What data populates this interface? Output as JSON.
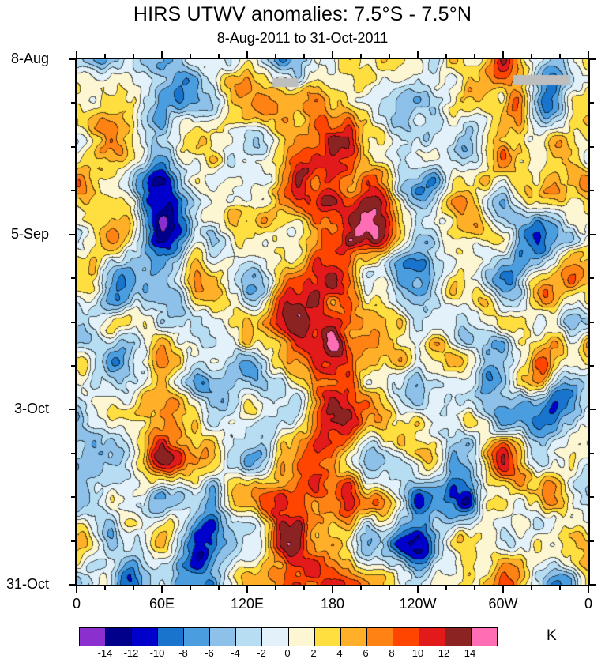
{
  "chart_data": {
    "type": "heatmap",
    "variant": "hovmoller_filled_contour",
    "title": "HIRS UTWV anomalies: 7.5°S - 7.5°N",
    "subtitle": "8-Aug-2011 to 31-Oct-2011",
    "x_axis": {
      "tick_labels": [
        "0",
        "60E",
        "120E",
        "180",
        "120W",
        "60W",
        "0"
      ],
      "range_degrees": [
        0,
        360
      ],
      "major_tick_step_degrees": 60,
      "minor_tick_step_degrees": 20
    },
    "y_axis": {
      "tick_labels": [
        "8-Aug",
        "5-Sep",
        "3-Oct",
        "31-Oct"
      ],
      "direction": "time-downward",
      "span_days": 84,
      "major_tick_step_days": 28,
      "minor_tick_step_days": 7
    },
    "colorbar": {
      "units": "K",
      "boundary_labels": [
        "-14",
        "-12",
        "-10",
        "-8",
        "-6",
        "-4",
        "-2",
        "0",
        "2",
        "4",
        "6",
        "8",
        "10",
        "12",
        "14"
      ],
      "cell_colors": [
        "#8B30CE",
        "#00008B",
        "#0000CD",
        "#1874CD",
        "#4A9EE0",
        "#8DC1EA",
        "#B7DDF2",
        "#E3F2FA",
        "#FDF6D3",
        "#FFDE3F",
        "#FFB028",
        "#FF8214",
        "#FF4500",
        "#E31A1C",
        "#8B2323",
        "#FF6EB4"
      ]
    },
    "missing_data_color": "#BEBEBE",
    "missing_data_patches": [
      {
        "x_frac": 0.383,
        "y_frac": 0.036,
        "w_frac": 0.05,
        "h_frac": 0.017
      },
      {
        "x_frac": 0.853,
        "y_frac": 0.03,
        "w_frac": 0.112,
        "h_frac": 0.019
      }
    ],
    "anomaly_grid_K": {
      "note": "coarse anomaly estimates (K); cols = longitude 0..360E step 30, rows = 8-Aug..31-Oct step 7 days",
      "values": [
        [
          3,
          -5,
          -7,
          -2,
          2,
          -5,
          2,
          3,
          -2,
          5,
          9,
          -3,
          3
        ],
        [
          1,
          3,
          -9,
          -4,
          4,
          7,
          10,
          2,
          -4,
          2,
          6,
          -8,
          1
        ],
        [
          -3,
          5,
          -7,
          2,
          -3,
          9,
          12,
          5,
          2,
          -5,
          7,
          2,
          -3
        ],
        [
          4,
          -3,
          -10,
          3,
          4,
          6,
          11,
          7,
          -6,
          3,
          -4,
          5,
          4
        ],
        [
          -2,
          4,
          -12,
          -5,
          2,
          -3,
          8,
          10,
          -3,
          4,
          3,
          -6,
          -2
        ],
        [
          3,
          -5,
          -8,
          4,
          -6,
          5,
          9,
          -2,
          -8,
          3,
          -4,
          4,
          3
        ],
        [
          -4,
          3,
          -3,
          -6,
          3,
          8,
          7,
          4,
          -4,
          -6,
          4,
          -3,
          -4
        ],
        [
          3,
          -6,
          3,
          -3,
          -5,
          4,
          10,
          5,
          3,
          4,
          -5,
          5,
          3
        ],
        [
          -5,
          2,
          6,
          -4,
          3,
          -3,
          12,
          6,
          -3,
          2,
          -4,
          -10,
          -5
        ],
        [
          2,
          -4,
          10,
          3,
          -6,
          5,
          8,
          -4,
          3,
          -5,
          5,
          -3,
          2
        ],
        [
          -6,
          4,
          -3,
          -8,
          3,
          7,
          10,
          3,
          -10,
          -12,
          2,
          5,
          -6
        ],
        [
          3,
          -7,
          4,
          -9,
          -5,
          9,
          6,
          -3,
          -9,
          3,
          -4,
          -2,
          3
        ],
        [
          -2,
          -6,
          -5,
          -8,
          3,
          6,
          8,
          4,
          -3,
          2,
          4,
          -5,
          -2
        ]
      ]
    }
  }
}
